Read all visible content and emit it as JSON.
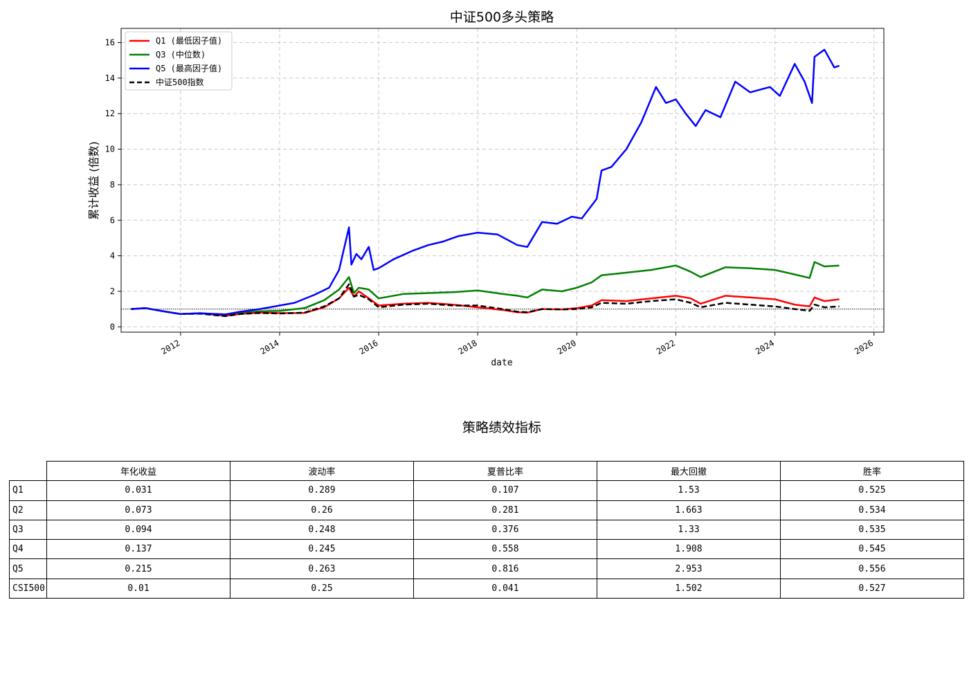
{
  "chart_data": {
    "type": "line",
    "title": "中证500多头策略",
    "xlabel": "date",
    "ylabel": "累计收益 (倍数)",
    "xlim": [
      2010.8,
      2026.2
    ],
    "ylim": [
      -0.3,
      16.8
    ],
    "x_ticks": [
      "2012",
      "2014",
      "2016",
      "2018",
      "2020",
      "2022",
      "2024",
      "2026"
    ],
    "x_tick_values": [
      2012,
      2014,
      2016,
      2018,
      2020,
      2022,
      2024,
      2026
    ],
    "y_ticks": [
      "0",
      "2",
      "4",
      "6",
      "8",
      "10",
      "12",
      "14",
      "16"
    ],
    "y_tick_values": [
      0,
      2,
      4,
      6,
      8,
      10,
      12,
      14,
      16
    ],
    "grid": true,
    "legend_position": "top-left",
    "reference_line": 1.0,
    "series": [
      {
        "name": "Q1 (最低因子值)",
        "color": "#ff0000",
        "dash": false,
        "x": [
          2011.0,
          2011.3,
          2011.6,
          2012.0,
          2012.4,
          2012.9,
          2013.2,
          2013.6,
          2014.0,
          2014.5,
          2014.9,
          2015.2,
          2015.4,
          2015.5,
          2015.6,
          2015.8,
          2016.0,
          2016.5,
          2017.0,
          2017.5,
          2018.0,
          2018.5,
          2018.8,
          2019.0,
          2019.3,
          2019.7,
          2020.0,
          2020.3,
          2020.5,
          2021.0,
          2021.5,
          2022.0,
          2022.3,
          2022.5,
          2023.0,
          2023.5,
          2024.0,
          2024.4,
          2024.7,
          2024.8,
          2025.0,
          2025.3
        ],
        "y": [
          1.0,
          1.05,
          0.9,
          0.72,
          0.76,
          0.62,
          0.72,
          0.8,
          0.77,
          0.78,
          1.1,
          1.6,
          2.2,
          1.7,
          2.0,
          1.6,
          1.2,
          1.3,
          1.35,
          1.25,
          1.1,
          0.95,
          0.82,
          0.8,
          1.0,
          0.98,
          1.05,
          1.2,
          1.5,
          1.45,
          1.6,
          1.75,
          1.6,
          1.3,
          1.75,
          1.65,
          1.55,
          1.25,
          1.15,
          1.65,
          1.45,
          1.55
        ]
      },
      {
        "name": "Q3 (中位数)",
        "color": "#008000",
        "dash": false,
        "x": [
          2011.0,
          2011.3,
          2011.6,
          2012.0,
          2012.4,
          2012.9,
          2013.2,
          2013.6,
          2014.0,
          2014.5,
          2014.9,
          2015.2,
          2015.4,
          2015.5,
          2015.6,
          2015.8,
          2016.0,
          2016.5,
          2017.0,
          2017.5,
          2018.0,
          2018.5,
          2018.8,
          2019.0,
          2019.3,
          2019.7,
          2020.0,
          2020.3,
          2020.5,
          2021.0,
          2021.5,
          2022.0,
          2022.3,
          2022.5,
          2023.0,
          2023.5,
          2024.0,
          2024.4,
          2024.7,
          2024.8,
          2025.0,
          2025.3
        ],
        "y": [
          1.0,
          1.05,
          0.9,
          0.72,
          0.77,
          0.66,
          0.78,
          0.88,
          0.9,
          1.05,
          1.5,
          2.1,
          2.8,
          1.9,
          2.2,
          2.1,
          1.6,
          1.85,
          1.9,
          1.95,
          2.05,
          1.85,
          1.75,
          1.65,
          2.1,
          2.0,
          2.2,
          2.5,
          2.9,
          3.05,
          3.2,
          3.45,
          3.1,
          2.8,
          3.35,
          3.3,
          3.2,
          2.95,
          2.75,
          3.65,
          3.4,
          3.45
        ]
      },
      {
        "name": "Q5 (最高因子值)",
        "color": "#0000ff",
        "dash": false,
        "x": [
          2011.0,
          2011.3,
          2011.6,
          2012.0,
          2012.4,
          2012.9,
          2013.2,
          2013.6,
          2014.0,
          2014.3,
          2014.7,
          2015.0,
          2015.2,
          2015.4,
          2015.45,
          2015.55,
          2015.65,
          2015.8,
          2015.9,
          2016.0,
          2016.3,
          2016.7,
          2017.0,
          2017.3,
          2017.6,
          2018.0,
          2018.4,
          2018.8,
          2019.0,
          2019.3,
          2019.6,
          2019.9,
          2020.1,
          2020.4,
          2020.5,
          2020.7,
          2021.0,
          2021.3,
          2021.6,
          2021.8,
          2022.0,
          2022.2,
          2022.4,
          2022.6,
          2022.9,
          2023.2,
          2023.5,
          2023.9,
          2024.1,
          2024.4,
          2024.6,
          2024.75,
          2024.8,
          2025.0,
          2025.2,
          2025.3
        ],
        "y": [
          1.0,
          1.05,
          0.9,
          0.72,
          0.76,
          0.7,
          0.85,
          1.0,
          1.2,
          1.35,
          1.8,
          2.2,
          3.2,
          5.6,
          3.5,
          4.1,
          3.8,
          4.5,
          3.2,
          3.3,
          3.8,
          4.3,
          4.6,
          4.8,
          5.1,
          5.3,
          5.2,
          4.6,
          4.5,
          5.9,
          5.8,
          6.2,
          6.1,
          7.2,
          8.8,
          9.0,
          10.0,
          11.5,
          13.5,
          12.6,
          12.8,
          12.0,
          11.3,
          12.2,
          11.8,
          13.8,
          13.2,
          13.5,
          13.0,
          14.8,
          13.8,
          12.6,
          15.2,
          15.6,
          14.6,
          14.7
        ]
      },
      {
        "name": "中证500指数",
        "color": "#000000",
        "dash": true,
        "x": [
          2011.0,
          2011.3,
          2011.6,
          2012.0,
          2012.4,
          2012.9,
          2013.2,
          2013.6,
          2014.0,
          2014.5,
          2014.9,
          2015.2,
          2015.4,
          2015.5,
          2015.6,
          2015.8,
          2016.0,
          2016.5,
          2017.0,
          2017.5,
          2018.0,
          2018.5,
          2018.8,
          2019.0,
          2019.3,
          2019.7,
          2020.0,
          2020.3,
          2020.5,
          2021.0,
          2021.5,
          2022.0,
          2022.3,
          2022.5,
          2023.0,
          2023.5,
          2024.0,
          2024.4,
          2024.7,
          2024.8,
          2025.0,
          2025.3
        ],
        "y": [
          1.0,
          1.05,
          0.9,
          0.72,
          0.74,
          0.6,
          0.72,
          0.78,
          0.75,
          0.8,
          1.15,
          1.6,
          2.4,
          1.7,
          1.8,
          1.55,
          1.1,
          1.25,
          1.3,
          1.2,
          1.2,
          1.0,
          0.85,
          0.82,
          1.0,
          0.98,
          1.0,
          1.1,
          1.35,
          1.3,
          1.45,
          1.55,
          1.35,
          1.1,
          1.35,
          1.25,
          1.15,
          1.0,
          0.9,
          1.25,
          1.1,
          1.15
        ]
      }
    ]
  },
  "table": {
    "title": "策略绩效指标",
    "columns": [
      "年化收益",
      "波动率",
      "夏普比率",
      "最大回撤",
      "胜率"
    ],
    "rows": [
      {
        "label": "Q1",
        "values": [
          "0.031",
          "0.289",
          "0.107",
          "1.53",
          "0.525"
        ]
      },
      {
        "label": "Q2",
        "values": [
          "0.073",
          "0.26",
          "0.281",
          "1.663",
          "0.534"
        ]
      },
      {
        "label": "Q3",
        "values": [
          "0.094",
          "0.248",
          "0.376",
          "1.33",
          "0.535"
        ]
      },
      {
        "label": "Q4",
        "values": [
          "0.137",
          "0.245",
          "0.558",
          "1.908",
          "0.545"
        ]
      },
      {
        "label": "Q5",
        "values": [
          "0.215",
          "0.263",
          "0.816",
          "2.953",
          "0.556"
        ]
      },
      {
        "label": "CSI500",
        "values": [
          "0.01",
          "0.25",
          "0.041",
          "1.502",
          "0.527"
        ]
      }
    ]
  }
}
